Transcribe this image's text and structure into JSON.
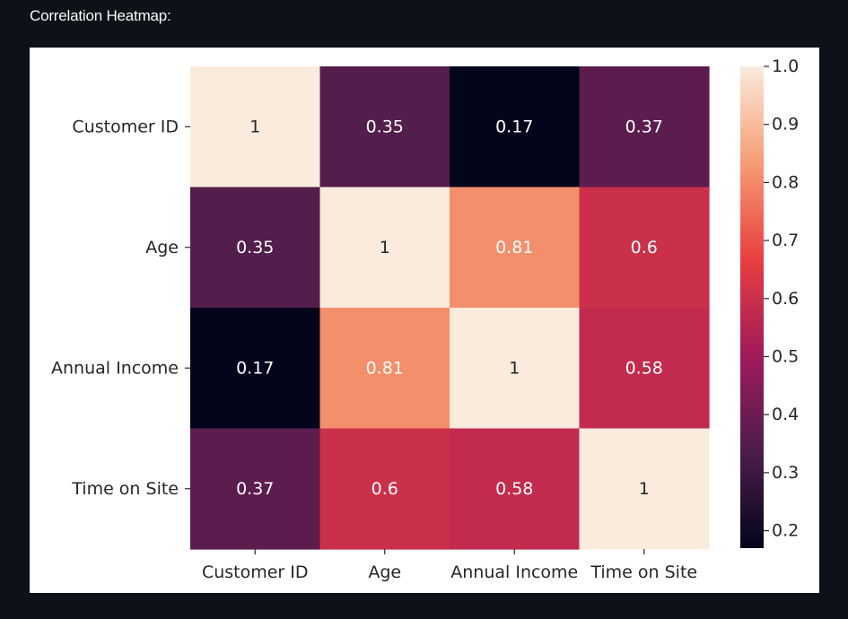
{
  "page": {
    "heading": "Correlation Heatmap:"
  },
  "colors": {
    "page_background": "#0e1117",
    "heading_text": "#fafafa",
    "figure_background": "#ffffff",
    "text_dark": "#262626",
    "text_light": "#ffffff",
    "colormap": [
      "#03051a",
      "#4c1d4b",
      "#a11a5b",
      "#e83f3f",
      "#f69c73",
      "#faebdd"
    ]
  },
  "chart_data": {
    "type": "heatmap",
    "title": "",
    "xlabel": "",
    "ylabel": "",
    "x_labels": [
      "Customer ID",
      "Age",
      "Annual Income",
      "Time on Site"
    ],
    "y_labels": [
      "Customer ID",
      "Age",
      "Annual Income",
      "Time on Site"
    ],
    "values": [
      [
        1,
        0.35,
        0.17,
        0.37
      ],
      [
        0.35,
        1,
        0.81,
        0.6
      ],
      [
        0.17,
        0.81,
        1,
        0.58
      ],
      [
        0.37,
        0.6,
        0.58,
        1
      ]
    ],
    "annotations": [
      [
        "1",
        "0.35",
        "0.17",
        "0.37"
      ],
      [
        "0.35",
        "1",
        "0.81",
        "0.6"
      ],
      [
        "0.17",
        "0.81",
        "1",
        "0.58"
      ],
      [
        "0.37",
        "0.6",
        "0.58",
        "1"
      ]
    ],
    "colormap": "rocket",
    "vmin": 0.17,
    "vmax": 1,
    "colorbar": {
      "ticks": [
        0.2,
        0.3,
        0.4,
        0.5,
        0.6,
        0.7,
        0.8,
        0.9,
        1.0
      ],
      "tick_labels": [
        "0.2",
        "0.3",
        "0.4",
        "0.5",
        "0.6",
        "0.7",
        "0.8",
        "0.9",
        "1.0"
      ],
      "placement": "right"
    },
    "grid": false
  }
}
